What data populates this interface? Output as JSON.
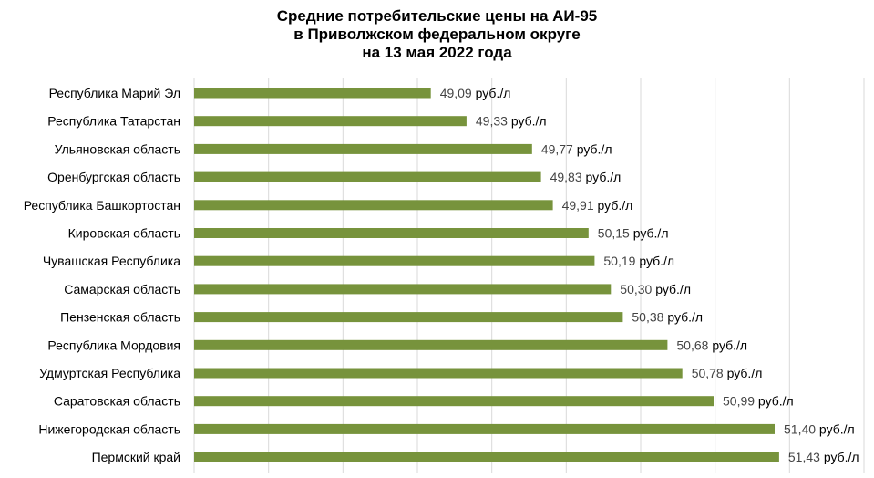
{
  "chart_data": {
    "type": "bar",
    "orientation": "horizontal",
    "title": [
      "Средние потребительские цены на АИ-95",
      "в Приволжском федеральном округе",
      "на 13 мая 2022 года"
    ],
    "categories": [
      "Республика  Марий Эл",
      "Республика  Татарстан",
      "Ульяновская область",
      "Оренбургская область",
      "Республика  Башкортостан",
      "Кировская область",
      "Чувашская  Республика",
      "Самарская область",
      "Пензенская область",
      "Республика  Мордовия",
      "Удмуртская Республика",
      "Саратовская область",
      "Нижегородская область",
      "Пермский край"
    ],
    "values": [
      49.09,
      49.33,
      49.77,
      49.83,
      49.91,
      50.15,
      50.19,
      50.3,
      50.38,
      50.68,
      50.78,
      50.99,
      51.4,
      51.43
    ],
    "value_labels": [
      "49,09",
      "49,33",
      "49,77",
      "49,83",
      "49,91",
      "50,15",
      "50,19",
      "50,30",
      "50,38",
      "50,68",
      "50,78",
      "50,99",
      "51,40",
      "51,43"
    ],
    "unit": "руб./л",
    "xlim": [
      47.5,
      52.0
    ],
    "grid": "vertical",
    "bar_color": "#77933C",
    "grid_color": "#D9D9D9"
  }
}
